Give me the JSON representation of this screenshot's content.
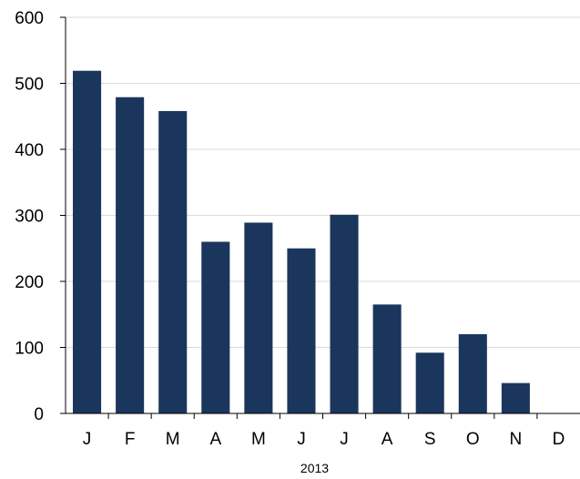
{
  "chart_data": {
    "type": "bar",
    "title": "",
    "xlabel": "2013",
    "ylabel": "",
    "categories": [
      "J",
      "F",
      "M",
      "A",
      "M",
      "J",
      "J",
      "A",
      "S",
      "O",
      "N",
      "D"
    ],
    "values": [
      519,
      479,
      458,
      260,
      289,
      250,
      301,
      165,
      92,
      120,
      46,
      0
    ],
    "ylim": [
      0,
      600
    ],
    "yticks": [
      0,
      100,
      200,
      300,
      400,
      500,
      600
    ],
    "grid": true,
    "legend": "none",
    "colors": {
      "bar": "#1b365d",
      "grid": "#d9d9d9",
      "axis": "#000000"
    }
  }
}
